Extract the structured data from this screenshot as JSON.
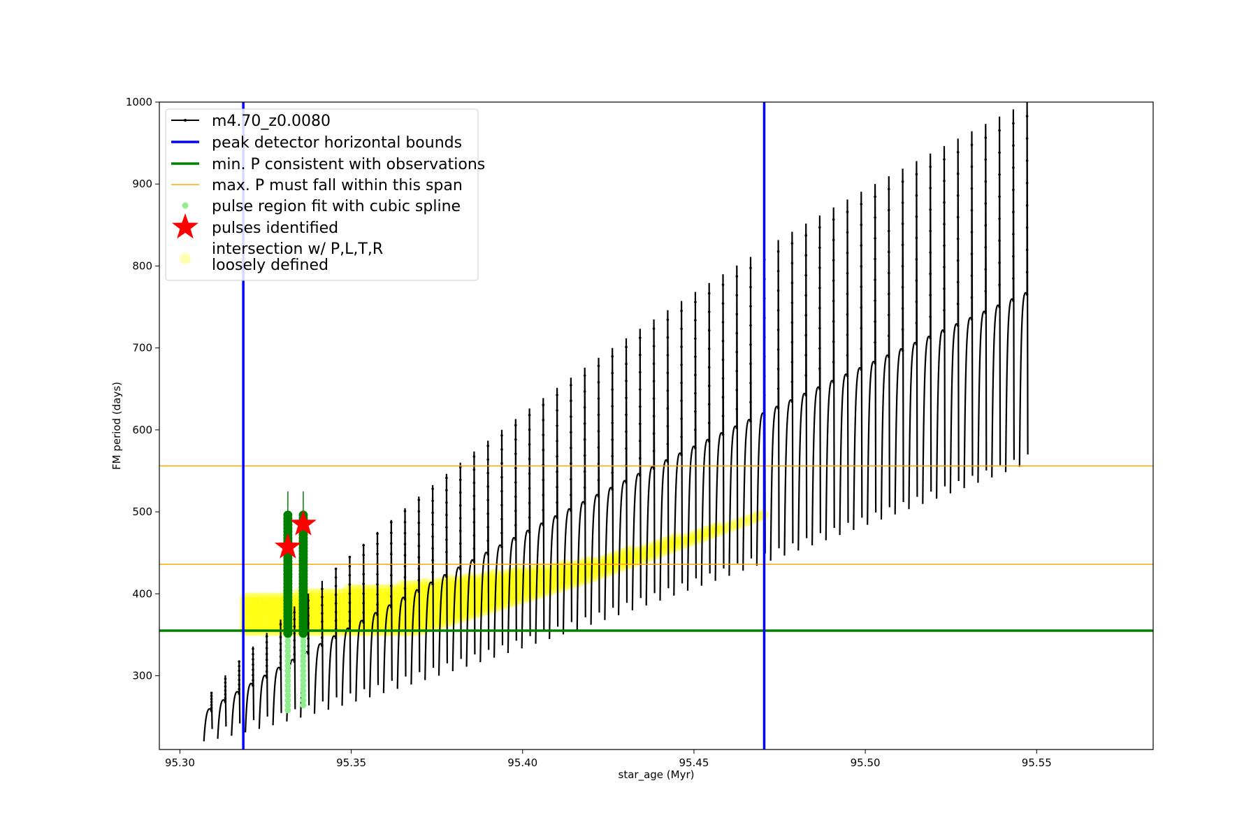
{
  "chart_data": {
    "type": "scatter",
    "xlabel": "star_age (Myr)",
    "ylabel": "FM period (days)",
    "xlim": [
      95.294,
      95.584
    ],
    "ylim": [
      210,
      1000
    ],
    "x_ticks": [
      {
        "value": 95.3,
        "label": "95.30"
      },
      {
        "value": 95.35,
        "label": "95.35"
      },
      {
        "value": 95.4,
        "label": "95.40"
      },
      {
        "value": 95.45,
        "label": "95.45"
      },
      {
        "value": 95.5,
        "label": "95.50"
      },
      {
        "value": 95.55,
        "label": "95.55"
      }
    ],
    "y_ticks": [
      {
        "value": 300,
        "label": "300"
      },
      {
        "value": 400,
        "label": "400"
      },
      {
        "value": 500,
        "label": "500"
      },
      {
        "value": 600,
        "label": "600"
      },
      {
        "value": 700,
        "label": "700"
      },
      {
        "value": 800,
        "label": "800"
      },
      {
        "value": 900,
        "label": "900"
      },
      {
        "value": 1000,
        "label": "1000"
      }
    ],
    "grid": false,
    "legend_position": "top-left",
    "colors": {
      "track": "#000000",
      "bounds": "#0000ff",
      "min_p": "#008000",
      "max_p": "#ffa500",
      "spline": "#90ee90",
      "pulse": "#ff0000",
      "intersection": "#ffff00"
    },
    "series": [
      {
        "name": "m4.70_z0.0080",
        "kind": "track",
        "pulse_range": [
          95.307,
          95.545
        ],
        "note_pulses": 60,
        "min_start": 220,
        "min_end": 555,
        "max_start": 280,
        "max_end": 1000
      },
      {
        "name": "peak detector horizontal bounds",
        "kind": "vline",
        "x": [
          95.3185,
          95.4705
        ]
      },
      {
        "name": "min. P consistent with observations",
        "kind": "hline",
        "y": [
          355
        ]
      },
      {
        "name": "max. P must fall within this span",
        "kind": "hline",
        "y": [
          436,
          556
        ]
      },
      {
        "name": "pulse region fit with cubic spline",
        "kind": "spline",
        "points": [
          {
            "x": 95.3315,
            "y_low": 258,
            "y_high": 497
          },
          {
            "x": 95.336,
            "y_low": 264,
            "y_high": 497
          }
        ]
      },
      {
        "name": "pulses identified",
        "kind": "star",
        "points": [
          {
            "x": 95.3315,
            "y": 457
          },
          {
            "x": 95.336,
            "y": 485
          }
        ]
      },
      {
        "name": "intersection w/ P,L,T,R\nloosely defined",
        "kind": "band",
        "x_range": [
          95.319,
          95.4705
        ],
        "lower": [
          355,
          355,
          420,
          497
        ],
        "upper": [
          395,
          412,
          440,
          497
        ]
      }
    ]
  },
  "legend": [
    {
      "key": "track",
      "label": "m4.70_z0.0080"
    },
    {
      "key": "bounds",
      "label": "peak detector horizontal bounds"
    },
    {
      "key": "min_p",
      "label": "min. P consistent with observations"
    },
    {
      "key": "max_p",
      "label": "max. P must fall within this span"
    },
    {
      "key": "spline",
      "label": "pulse region fit with cubic spline"
    },
    {
      "key": "pulse",
      "label": "pulses identified"
    },
    {
      "key": "intersection",
      "label_line1": "intersection w/ P,L,T,R",
      "label_line2": "loosely defined"
    }
  ]
}
